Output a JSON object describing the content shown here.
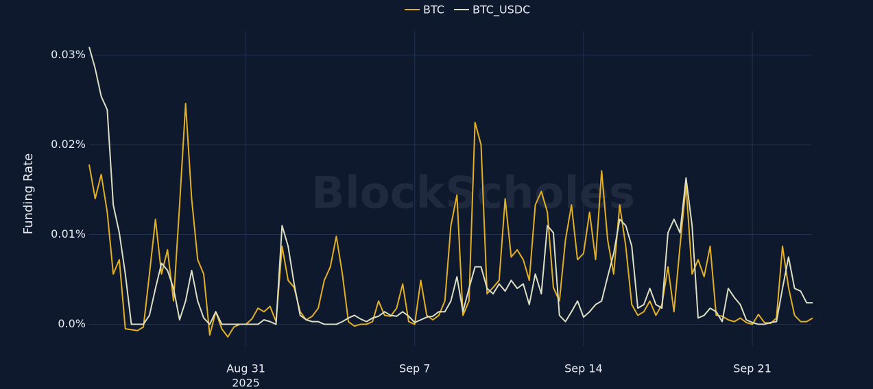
{
  "chart_data": {
    "type": "line",
    "watermark": "BlockScholes",
    "y_label": "Funding Rate",
    "xlim": [
      "2025-08-24 12:00",
      "2025-09-23 12:00"
    ],
    "xticks": [
      {
        "value": "2025-08-31 00:00",
        "label": "Aug 31"
      },
      {
        "value": "2025-09-07 00:00",
        "label": "Sep 7"
      },
      {
        "value": "2025-09-14 00:00",
        "label": "Sep 14"
      },
      {
        "value": "2025-09-21 00:00",
        "label": "Sep 21"
      }
    ],
    "xtick_sublabel": "2025",
    "ylim": [
      -0.0024,
      0.0327
    ],
    "yticks": [
      {
        "value": 0,
        "label": "0.0%"
      },
      {
        "value": 0.01,
        "label": "0.01%"
      },
      {
        "value": 0.02,
        "label": "0.02%"
      },
      {
        "value": 0.03,
        "label": "0.03%"
      }
    ],
    "grid": true,
    "legend": "top",
    "x": [
      "2025-08-24 12:00",
      "2025-08-24 18:00",
      "2025-08-25 00:00",
      "2025-08-25 06:00",
      "2025-08-25 12:00",
      "2025-08-25 18:00",
      "2025-08-26 00:00",
      "2025-08-26 06:00",
      "2025-08-26 12:00",
      "2025-08-26 18:00",
      "2025-08-27 00:00",
      "2025-08-27 06:00",
      "2025-08-27 12:00",
      "2025-08-27 18:00",
      "2025-08-28 00:00",
      "2025-08-28 06:00",
      "2025-08-28 12:00",
      "2025-08-28 18:00",
      "2025-08-29 00:00",
      "2025-08-29 06:00",
      "2025-08-29 12:00",
      "2025-08-29 18:00",
      "2025-08-30 00:00",
      "2025-08-30 06:00",
      "2025-08-30 12:00",
      "2025-08-30 18:00",
      "2025-08-31 00:00",
      "2025-08-31 06:00",
      "2025-08-31 12:00",
      "2025-08-31 18:00",
      "2025-09-01 00:00",
      "2025-09-01 06:00",
      "2025-09-01 12:00",
      "2025-09-01 18:00",
      "2025-09-02 00:00",
      "2025-09-02 06:00",
      "2025-09-02 12:00",
      "2025-09-02 18:00",
      "2025-09-03 00:00",
      "2025-09-03 06:00",
      "2025-09-03 12:00",
      "2025-09-03 18:00",
      "2025-09-04 00:00",
      "2025-09-04 06:00",
      "2025-09-04 12:00",
      "2025-09-04 18:00",
      "2025-09-05 00:00",
      "2025-09-05 06:00",
      "2025-09-05 12:00",
      "2025-09-05 18:00",
      "2025-09-06 00:00",
      "2025-09-06 06:00",
      "2025-09-06 12:00",
      "2025-09-06 18:00",
      "2025-09-07 00:00",
      "2025-09-07 06:00",
      "2025-09-07 12:00",
      "2025-09-07 18:00",
      "2025-09-08 00:00",
      "2025-09-08 06:00",
      "2025-09-08 12:00",
      "2025-09-08 18:00",
      "2025-09-09 00:00",
      "2025-09-09 06:00",
      "2025-09-09 12:00",
      "2025-09-09 18:00",
      "2025-09-10 00:00",
      "2025-09-10 06:00",
      "2025-09-10 12:00",
      "2025-09-10 18:00",
      "2025-09-11 00:00",
      "2025-09-11 06:00",
      "2025-09-11 12:00",
      "2025-09-11 18:00",
      "2025-09-12 00:00",
      "2025-09-12 06:00",
      "2025-09-12 12:00",
      "2025-09-12 18:00",
      "2025-09-13 00:00",
      "2025-09-13 06:00",
      "2025-09-13 12:00",
      "2025-09-13 18:00",
      "2025-09-14 00:00",
      "2025-09-14 06:00",
      "2025-09-14 12:00",
      "2025-09-14 18:00",
      "2025-09-15 00:00",
      "2025-09-15 06:00",
      "2025-09-15 12:00",
      "2025-09-15 18:00",
      "2025-09-16 00:00",
      "2025-09-16 06:00",
      "2025-09-16 12:00",
      "2025-09-16 18:00",
      "2025-09-17 00:00",
      "2025-09-17 06:00",
      "2025-09-17 12:00",
      "2025-09-17 18:00",
      "2025-09-18 00:00",
      "2025-09-18 06:00",
      "2025-09-18 12:00",
      "2025-09-18 18:00",
      "2025-09-19 00:00",
      "2025-09-19 06:00",
      "2025-09-19 12:00",
      "2025-09-19 18:00",
      "2025-09-20 00:00",
      "2025-09-20 06:00",
      "2025-09-20 12:00",
      "2025-09-20 18:00",
      "2025-09-21 00:00",
      "2025-09-21 06:00",
      "2025-09-21 12:00",
      "2025-09-21 18:00",
      "2025-09-22 00:00",
      "2025-09-22 06:00",
      "2025-09-22 12:00",
      "2025-09-22 18:00",
      "2025-09-23 00:00",
      "2025-09-23 06:00",
      "2025-09-23 12:00"
    ],
    "series": [
      {
        "name": "BTC",
        "color": "#e3b024",
        "values": [
          0.0178,
          0.014,
          0.0167,
          0.0125,
          0.0056,
          0.0072,
          -0.0005,
          -0.0006,
          -0.0007,
          -0.0003,
          0.0056,
          0.0117,
          0.0056,
          0.0083,
          0.0026,
          0.0133,
          0.0246,
          0.014,
          0.0072,
          0.0056,
          -0.0012,
          0.0014,
          -0.0005,
          -0.0014,
          -0.0003,
          0,
          0,
          0.0006,
          0.0018,
          0.0014,
          0.002,
          0.0003,
          0.0087,
          0.0049,
          0.0041,
          0.0014,
          0.0005,
          0.0009,
          0.0018,
          0.0049,
          0.0064,
          0.0098,
          0.0056,
          0.0003,
          -0.0002,
          0,
          0,
          0.0003,
          0.0026,
          0.001,
          0.0009,
          0.0018,
          0.0045,
          0.0003,
          0,
          0.0049,
          0.001,
          0.0005,
          0.001,
          0.0026,
          0.011,
          0.0144,
          0.001,
          0.0026,
          0.0225,
          0.02,
          0.0034,
          0.0041,
          0.0049,
          0.014,
          0.0075,
          0.0083,
          0.0072,
          0.0049,
          0.0133,
          0.0148,
          0.0125,
          0.0041,
          0.0026,
          0.0094,
          0.0133,
          0.0072,
          0.0079,
          0.0125,
          0.0072,
          0.0171,
          0.0094,
          0.0056,
          0.0133,
          0.0087,
          0.0022,
          0.001,
          0.0014,
          0.0026,
          0.001,
          0.0022,
          0.0064,
          0.0014,
          0.0087,
          0.0155,
          0.0056,
          0.0072,
          0.0053,
          0.0087,
          0.001,
          0.0009,
          0.0005,
          0.0003,
          0.0007,
          0.0002,
          0,
          0.0011,
          0.0002,
          0.0001,
          0.0007,
          0.0087,
          0.0041,
          0.001,
          0.0003,
          0.0003,
          0.0007
        ]
      },
      {
        "name": "BTC_USDC",
        "color": "#dcdfc4",
        "values": [
          0.0309,
          0.0285,
          0.0254,
          0.0239,
          0.0133,
          0.0102,
          0.0056,
          0,
          0,
          0,
          0.001,
          0.004,
          0.0068,
          0.006,
          0.004,
          0.0005,
          0.0026,
          0.006,
          0.0026,
          0.0007,
          0,
          0.0014,
          0,
          0,
          0,
          0,
          0,
          0,
          0,
          0.0005,
          0.0003,
          0,
          0.011,
          0.0087,
          0.0045,
          0.001,
          0.0005,
          0.0003,
          0.0003,
          0,
          0,
          0,
          0.0003,
          0.0007,
          0.001,
          0.0006,
          0.0003,
          0.0007,
          0.0009,
          0.0014,
          0.001,
          0.0009,
          0.0014,
          0.0009,
          0.0002,
          0.0005,
          0.0008,
          0.0009,
          0.0014,
          0.0014,
          0.0026,
          0.0053,
          0.0014,
          0.004,
          0.0064,
          0.0064,
          0.004,
          0.0034,
          0.0045,
          0.0037,
          0.0049,
          0.004,
          0.0045,
          0.0022,
          0.0056,
          0.0034,
          0.011,
          0.0102,
          0.001,
          0.0003,
          0.0014,
          0.0026,
          0.0008,
          0.0014,
          0.0022,
          0.0026,
          0.0053,
          0.0079,
          0.0117,
          0.011,
          0.0087,
          0.0018,
          0.0022,
          0.004,
          0.0022,
          0.0018,
          0.0102,
          0.0117,
          0.0102,
          0.0163,
          0.011,
          0.0007,
          0.001,
          0.0018,
          0.0014,
          0.0003,
          0.004,
          0.003,
          0.0022,
          0.0005,
          0.0002,
          0,
          0,
          0.0002,
          0.0003,
          0.004,
          0.0075,
          0.004,
          0.0037,
          0.0024,
          0.0024
        ]
      }
    ]
  }
}
